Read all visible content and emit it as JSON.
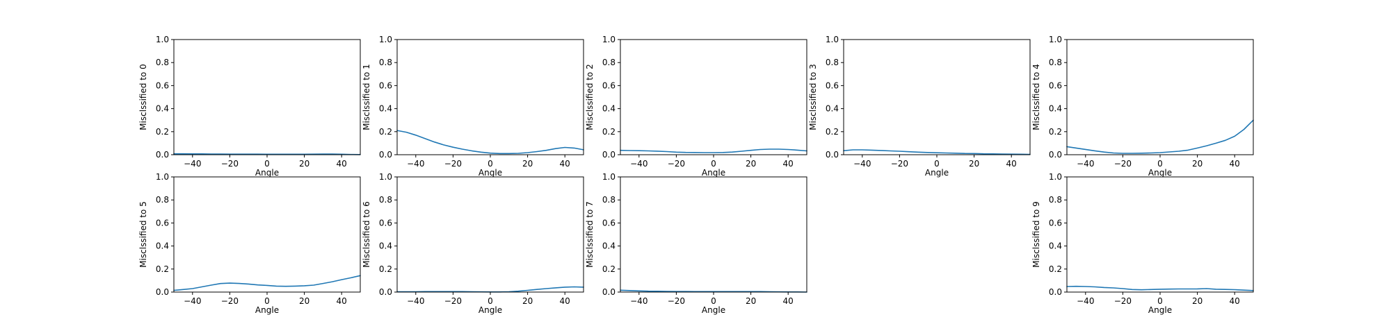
{
  "chart_data": [
    {
      "type": "line",
      "xlabel": "Angle",
      "ylabel": "Misclssified to 0",
      "xlim": [
        -50,
        50
      ],
      "ylim": [
        0,
        1
      ],
      "xticks": [
        -40,
        -20,
        0,
        20,
        40
      ],
      "yticks": [
        0.0,
        0.2,
        0.4,
        0.6,
        0.8,
        1.0
      ],
      "grid": false,
      "x": [
        -50,
        -45,
        -40,
        -35,
        -30,
        -25,
        -20,
        -15,
        -10,
        -5,
        0,
        5,
        10,
        15,
        20,
        25,
        30,
        35,
        40,
        45,
        50
      ],
      "y": [
        0.008,
        0.008,
        0.007,
        0.007,
        0.006,
        0.006,
        0.005,
        0.005,
        0.005,
        0.005,
        0.004,
        0.004,
        0.004,
        0.004,
        0.004,
        0.005,
        0.006,
        0.006,
        0.004,
        0.002,
        0.001
      ]
    },
    {
      "type": "line",
      "xlabel": "Angle",
      "ylabel": "Misclssified to 1",
      "xlim": [
        -50,
        50
      ],
      "ylim": [
        0,
        1
      ],
      "xticks": [
        -40,
        -20,
        0,
        20,
        40
      ],
      "yticks": [
        0.0,
        0.2,
        0.4,
        0.6,
        0.8,
        1.0
      ],
      "grid": false,
      "x": [
        -50,
        -45,
        -40,
        -35,
        -30,
        -25,
        -20,
        -15,
        -10,
        -5,
        0,
        5,
        10,
        15,
        20,
        25,
        30,
        35,
        40,
        45,
        50
      ],
      "y": [
        0.21,
        0.195,
        0.17,
        0.14,
        0.11,
        0.085,
        0.065,
        0.048,
        0.034,
        0.022,
        0.014,
        0.01,
        0.01,
        0.012,
        0.018,
        0.027,
        0.038,
        0.053,
        0.063,
        0.058,
        0.043
      ]
    },
    {
      "type": "line",
      "xlabel": "Angle",
      "ylabel": "Misclssified to 2",
      "xlim": [
        -50,
        50
      ],
      "ylim": [
        0,
        1
      ],
      "xticks": [
        -40,
        -20,
        0,
        20,
        40
      ],
      "yticks": [
        0.0,
        0.2,
        0.4,
        0.6,
        0.8,
        1.0
      ],
      "grid": false,
      "x": [
        -50,
        -45,
        -40,
        -35,
        -30,
        -25,
        -20,
        -15,
        -10,
        -5,
        0,
        5,
        10,
        15,
        20,
        25,
        30,
        35,
        40,
        45,
        50
      ],
      "y": [
        0.038,
        0.036,
        0.035,
        0.033,
        0.031,
        0.027,
        0.022,
        0.02,
        0.019,
        0.018,
        0.018,
        0.019,
        0.023,
        0.03,
        0.038,
        0.045,
        0.048,
        0.048,
        0.045,
        0.04,
        0.033
      ]
    },
    {
      "type": "line",
      "xlabel": "Angle",
      "ylabel": "Misclssified to 3",
      "xlim": [
        -50,
        50
      ],
      "ylim": [
        0,
        1
      ],
      "xticks": [
        -40,
        -20,
        0,
        20,
        40
      ],
      "yticks": [
        0.0,
        0.2,
        0.4,
        0.6,
        0.8,
        1.0
      ],
      "grid": false,
      "x": [
        -50,
        -45,
        -40,
        -35,
        -30,
        -25,
        -20,
        -15,
        -10,
        -5,
        0,
        5,
        10,
        15,
        20,
        25,
        30,
        35,
        40,
        45,
        50
      ],
      "y": [
        0.035,
        0.042,
        0.042,
        0.04,
        0.037,
        0.033,
        0.03,
        0.026,
        0.022,
        0.019,
        0.017,
        0.015,
        0.013,
        0.011,
        0.01,
        0.008,
        0.007,
        0.006,
        0.005,
        0.004,
        0.003
      ]
    },
    {
      "type": "line",
      "xlabel": "Angle",
      "ylabel": "Misclssified to 4",
      "xlim": [
        -50,
        50
      ],
      "ylim": [
        0,
        1
      ],
      "xticks": [
        -40,
        -20,
        0,
        20,
        40
      ],
      "yticks": [
        0.0,
        0.2,
        0.4,
        0.6,
        0.8,
        1.0
      ],
      "grid": false,
      "x": [
        -50,
        -45,
        -40,
        -35,
        -30,
        -25,
        -20,
        -15,
        -10,
        -5,
        0,
        5,
        10,
        15,
        20,
        25,
        30,
        35,
        40,
        45,
        50
      ],
      "y": [
        0.07,
        0.058,
        0.046,
        0.034,
        0.023,
        0.015,
        0.012,
        0.012,
        0.013,
        0.015,
        0.018,
        0.024,
        0.03,
        0.04,
        0.058,
        0.078,
        0.1,
        0.125,
        0.16,
        0.22,
        0.3
      ]
    },
    {
      "type": "line",
      "xlabel": "Angle",
      "ylabel": "Misclssified to 5",
      "xlim": [
        -50,
        50
      ],
      "ylim": [
        0,
        1
      ],
      "xticks": [
        -40,
        -20,
        0,
        20,
        40
      ],
      "yticks": [
        0.0,
        0.2,
        0.4,
        0.6,
        0.8,
        1.0
      ],
      "grid": false,
      "x": [
        -50,
        -45,
        -40,
        -35,
        -30,
        -25,
        -20,
        -15,
        -10,
        -5,
        0,
        5,
        10,
        15,
        20,
        25,
        30,
        35,
        40,
        45,
        50
      ],
      "y": [
        0.015,
        0.022,
        0.03,
        0.045,
        0.06,
        0.074,
        0.078,
        0.075,
        0.07,
        0.062,
        0.058,
        0.052,
        0.05,
        0.052,
        0.055,
        0.06,
        0.075,
        0.09,
        0.108,
        0.124,
        0.143
      ]
    },
    {
      "type": "line",
      "xlabel": "Angle",
      "ylabel": "Misclssified to 6",
      "xlim": [
        -50,
        50
      ],
      "ylim": [
        0,
        1
      ],
      "xticks": [
        -40,
        -20,
        0,
        20,
        40
      ],
      "yticks": [
        0.0,
        0.2,
        0.4,
        0.6,
        0.8,
        1.0
      ],
      "grid": false,
      "x": [
        -50,
        -45,
        -40,
        -35,
        -30,
        -25,
        -20,
        -15,
        -10,
        -5,
        0,
        5,
        10,
        15,
        20,
        25,
        30,
        35,
        40,
        45,
        50
      ],
      "y": [
        0.003,
        0.003,
        0.003,
        0.004,
        0.004,
        0.004,
        0.004,
        0.004,
        0.003,
        0.002,
        0.001,
        0.001,
        0.003,
        0.008,
        0.015,
        0.023,
        0.03,
        0.037,
        0.043,
        0.045,
        0.043
      ]
    },
    {
      "type": "line",
      "xlabel": "Angle",
      "ylabel": "Misclssified to 7",
      "xlim": [
        -50,
        50
      ],
      "ylim": [
        0,
        1
      ],
      "xticks": [
        -40,
        -20,
        0,
        20,
        40
      ],
      "yticks": [
        0.0,
        0.2,
        0.4,
        0.6,
        0.8,
        1.0
      ],
      "grid": false,
      "x": [
        -50,
        -45,
        -40,
        -35,
        -30,
        -25,
        -20,
        -15,
        -10,
        -5,
        0,
        5,
        10,
        15,
        20,
        25,
        30,
        35,
        40,
        45,
        50
      ],
      "y": [
        0.016,
        0.013,
        0.01,
        0.008,
        0.007,
        0.006,
        0.005,
        0.005,
        0.004,
        0.004,
        0.004,
        0.004,
        0.004,
        0.004,
        0.004,
        0.004,
        0.003,
        0.002,
        0.001,
        0.001,
        0.0
      ]
    },
    null,
    {
      "type": "line",
      "xlabel": "Angle",
      "ylabel": "Misclssified to 9",
      "xlim": [
        -50,
        50
      ],
      "ylim": [
        0,
        1
      ],
      "xticks": [
        -40,
        -20,
        0,
        20,
        40
      ],
      "yticks": [
        0.0,
        0.2,
        0.4,
        0.6,
        0.8,
        1.0
      ],
      "grid": false,
      "x": [
        -50,
        -45,
        -40,
        -35,
        -30,
        -25,
        -20,
        -15,
        -10,
        -5,
        0,
        5,
        10,
        15,
        20,
        25,
        30,
        35,
        40,
        45,
        50
      ],
      "y": [
        0.048,
        0.05,
        0.048,
        0.045,
        0.04,
        0.036,
        0.03,
        0.022,
        0.02,
        0.022,
        0.025,
        0.026,
        0.027,
        0.027,
        0.028,
        0.03,
        0.025,
        0.023,
        0.021,
        0.017,
        0.013
      ]
    }
  ],
  "colors": {
    "series": "#1f77b4",
    "axes": "#000000",
    "background": "#ffffff"
  }
}
